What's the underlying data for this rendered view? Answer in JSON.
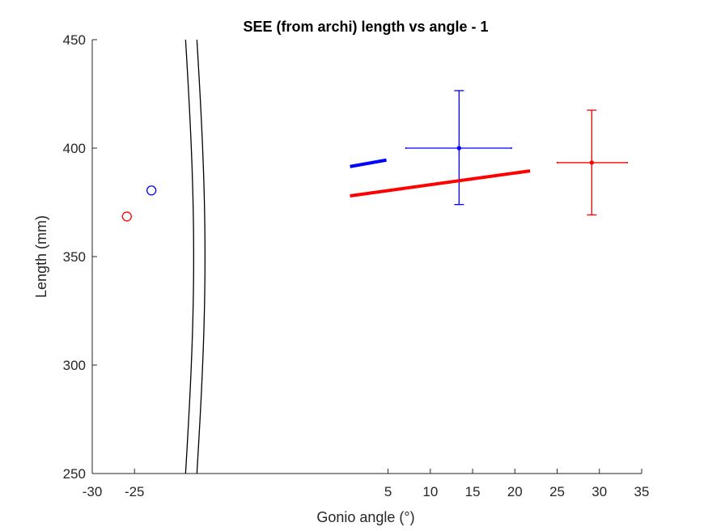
{
  "chart_data": {
    "type": "scatter",
    "title": "SEE (from archi) length vs angle - 1",
    "xlabel": "Gonio angle (°)",
    "ylabel": "Length (mm)",
    "xlim": [
      -30,
      35
    ],
    "ylim": [
      250,
      450
    ],
    "xticks": [
      {
        "value": -30,
        "label": "-30"
      },
      {
        "value": -25,
        "label": "-25"
      },
      {
        "value": 5,
        "label": "5"
      },
      {
        "value": 10,
        "label": "10"
      },
      {
        "value": 15,
        "label": "15"
      },
      {
        "value": 20,
        "label": "20"
      },
      {
        "value": 25,
        "label": "25"
      },
      {
        "value": 30,
        "label": "30"
      },
      {
        "value": 35,
        "label": "35"
      }
    ],
    "yticks": [
      {
        "value": 250,
        "label": "250"
      },
      {
        "value": 300,
        "label": "300"
      },
      {
        "value": 350,
        "label": "350"
      },
      {
        "value": 400,
        "label": "400"
      },
      {
        "value": 450,
        "label": "450"
      }
    ],
    "x_break": {
      "value": -18
    },
    "grid": false,
    "legend": "none",
    "colors": {
      "blue": "#0000ff",
      "red": "#ff0000",
      "axis": "#262626"
    },
    "series": [
      {
        "color": "#0000ff",
        "single_point": {
          "x": -23,
          "y": 380.5
        },
        "fit_line": {
          "x": [
            0.5,
            4.8
          ],
          "y": [
            391.5,
            394.5
          ]
        },
        "mean_with_error": {
          "x": 13.4,
          "y": 400,
          "xerr": [
            7.1,
            19.6
          ],
          "yerr": [
            374,
            426.5
          ]
        }
      },
      {
        "color": "#ff0000",
        "single_point": {
          "x": -25.9,
          "y": 368.5
        },
        "fit_line": {
          "x": [
            0.5,
            21.8
          ],
          "y": [
            378,
            389.5
          ]
        },
        "mean_with_error": {
          "x": 29.1,
          "y": 393.3,
          "xerr": [
            25,
            33.3
          ],
          "yerr": [
            369.2,
            417.5
          ]
        }
      }
    ]
  }
}
